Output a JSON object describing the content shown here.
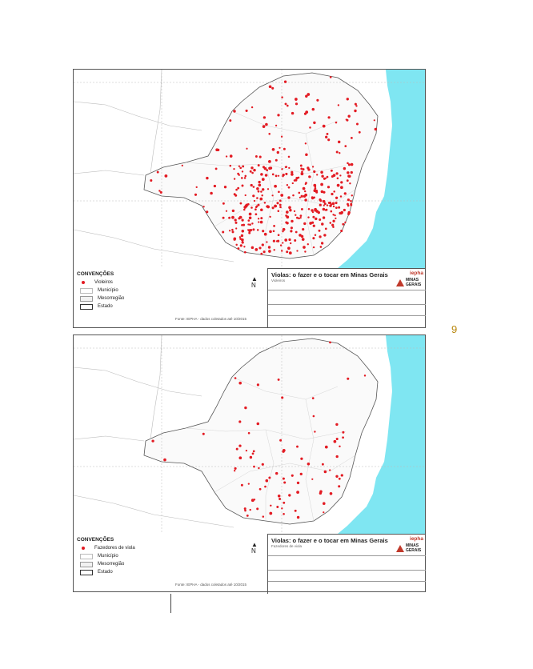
{
  "page_number": "9",
  "maps": [
    {
      "id": "sheet1",
      "title": "Violas: o fazer e o tocar em Minas Gerais",
      "legend_title": "CONVENÇÕES",
      "legend_items": [
        "Violeiros",
        "Município",
        "Mesorregião",
        "Estado"
      ],
      "source": "Fonte: IEPHA - dados coletados até 10/2015",
      "layer": "Violeiros",
      "point_color": "#e31b23"
    },
    {
      "id": "sheet2",
      "title": "Violas: o fazer e o tocar em Minas Gerais",
      "legend_title": "CONVENÇÕES",
      "legend_items": [
        "Fazedores de viola",
        "Município",
        "Mesorregião",
        "Estado"
      ],
      "source": "Fonte: IEPHA - dados coletados até 10/2015",
      "layer": "Fazedores de viola",
      "point_color": "#e31b23"
    }
  ],
  "logos": {
    "iepha": "iepha",
    "mg": "MINAS GERAIS"
  },
  "colors": {
    "ocean": "#7fe6f2",
    "points": "#e31b23",
    "land": "#ffffff"
  }
}
